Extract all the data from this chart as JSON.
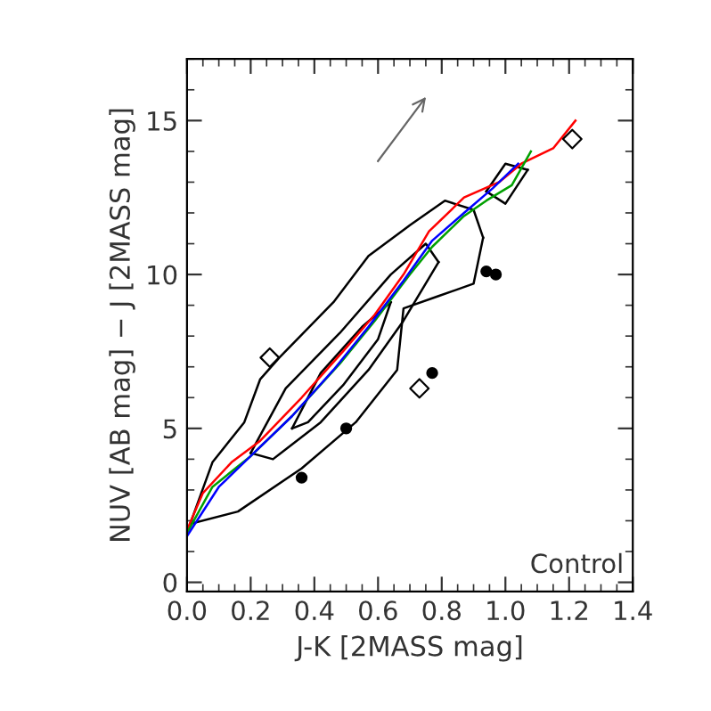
{
  "chart_data": {
    "type": "line",
    "xlabel": "J-K [2MASS mag]",
    "ylabel": "NUV [AB mag] − J [2MASS mag]",
    "xlim": [
      0,
      1.4
    ],
    "ylim": [
      -0.3,
      17
    ],
    "xticks": [
      {
        "value": 0,
        "label": "0.0"
      },
      0.2,
      0.4,
      0.6,
      0.8,
      {
        "value": 1,
        "label": "1.0"
      },
      1.2,
      1.4
    ],
    "yticks": [
      0,
      5,
      10,
      15
    ],
    "grid": false,
    "legend": false,
    "annotations": [
      "Control"
    ],
    "series": [
      {
        "color": "#000000",
        "x": [
          0.01,
          0.08,
          0.18,
          0.23,
          0.29,
          0.46,
          0.57,
          0.7,
          0.81,
          0.9,
          0.93
        ],
        "values": [
          1.9,
          3.9,
          5.2,
          6.6,
          7.3,
          9.1,
          10.6,
          11.6,
          12.4,
          12.1,
          11.2
        ]
      },
      {
        "color": "#000000",
        "x": [
          0.01,
          0.16,
          0.36,
          0.53,
          0.66,
          0.68,
          0.79,
          0.9,
          0.93
        ],
        "values": [
          1.9,
          2.3,
          3.7,
          5.2,
          6.9,
          8.9,
          9.3,
          9.7,
          11.2
        ]
      },
      {
        "color": "#000000",
        "x": [
          0.94,
          1.0,
          1.07
        ],
        "values": [
          12.7,
          13.6,
          13.4
        ]
      },
      {
        "color": "#000000",
        "x": [
          0.94,
          1.0,
          1.07
        ],
        "values": [
          12.7,
          12.3,
          13.4
        ]
      },
      {
        "color": "#000000",
        "x": [
          0.2,
          0.31,
          0.48,
          0.64,
          0.75,
          0.79
        ],
        "values": [
          4.2,
          6.3,
          8.1,
          10.0,
          11.0,
          10.4
        ]
      },
      {
        "color": "#000000",
        "x": [
          0.2,
          0.27,
          0.42,
          0.57,
          0.68,
          0.79
        ],
        "values": [
          4.2,
          4.0,
          5.2,
          6.9,
          8.5,
          10.4
        ]
      },
      {
        "color": "#000000",
        "x": [
          0.33,
          0.42,
          0.55,
          0.64
        ],
        "values": [
          5.0,
          6.8,
          8.3,
          9.1
        ]
      },
      {
        "color": "#000000",
        "x": [
          0.33,
          0.38,
          0.49,
          0.6,
          0.64
        ],
        "values": [
          5.0,
          5.2,
          6.4,
          7.9,
          9.1
        ]
      },
      {
        "color": "#ff0000",
        "x": [
          0,
          0.05,
          0.14,
          0.23,
          0.36,
          0.49,
          0.59,
          0.68,
          0.76,
          0.87,
          0.98,
          1.05,
          1.15,
          1.22
        ],
        "values": [
          1.7,
          2.9,
          3.9,
          4.6,
          6.0,
          7.5,
          8.7,
          10.0,
          11.4,
          12.5,
          13.0,
          13.6,
          14.1,
          15.0
        ]
      },
      {
        "color": "#00a000",
        "x": [
          0,
          0.08,
          0.2,
          0.33,
          0.48,
          0.59,
          0.7,
          0.77,
          0.87,
          0.94,
          1.02,
          1.08
        ],
        "values": [
          1.6,
          3.1,
          4.1,
          5.4,
          7.1,
          8.5,
          10.0,
          10.9,
          11.9,
          12.4,
          12.9,
          14.0
        ]
      },
      {
        "color": "#0000ff",
        "x": [
          0,
          0.1,
          0.21,
          0.33,
          0.46,
          0.57,
          0.68,
          0.77,
          0.87,
          0.96,
          1.04
        ],
        "values": [
          1.5,
          3.1,
          4.2,
          5.4,
          6.9,
          8.3,
          9.8,
          11.1,
          12.0,
          12.8,
          13.6
        ]
      },
      {
        "type": "scatter",
        "marker": "circle",
        "color": "#000000",
        "x": [
          0.36,
          0.5,
          0.77,
          0.94,
          0.97
        ],
        "values": [
          3.4,
          5.0,
          6.8,
          10.1,
          10.0
        ]
      },
      {
        "type": "scatter",
        "marker": "diamond",
        "color": "#000000",
        "x": [
          0.26,
          0.73,
          1.21
        ],
        "values": [
          7.3,
          6.3,
          14.4
        ]
      }
    ]
  }
}
